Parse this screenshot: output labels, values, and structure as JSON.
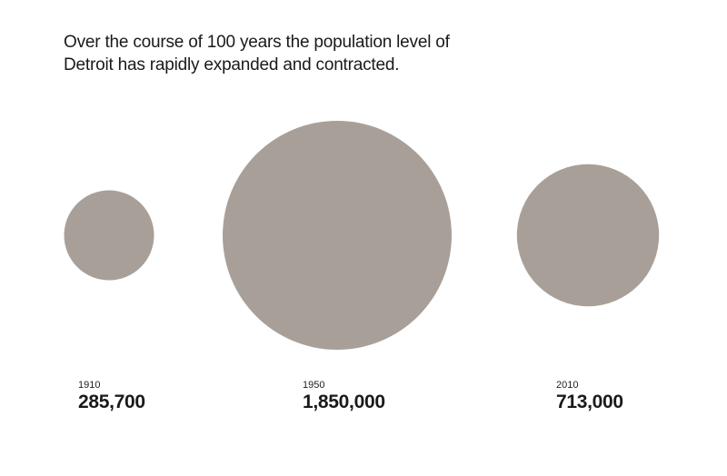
{
  "title": "Over the course of 100 years the population level of Detroit has rapidly expanded and contracted.",
  "chart_data": {
    "type": "bubble",
    "title": "Over the course of 100 years the population level of Detroit has rapidly expanded and contracted.",
    "encoding": "circle area proportional to population",
    "color": "#a8a098",
    "points": [
      {
        "year": "1910",
        "value": 285700,
        "value_label": "285,700"
      },
      {
        "year": "1950",
        "value": 1850000,
        "value_label": "1,850,000"
      },
      {
        "year": "2010",
        "value": 713000,
        "value_label": "713,000"
      }
    ]
  }
}
